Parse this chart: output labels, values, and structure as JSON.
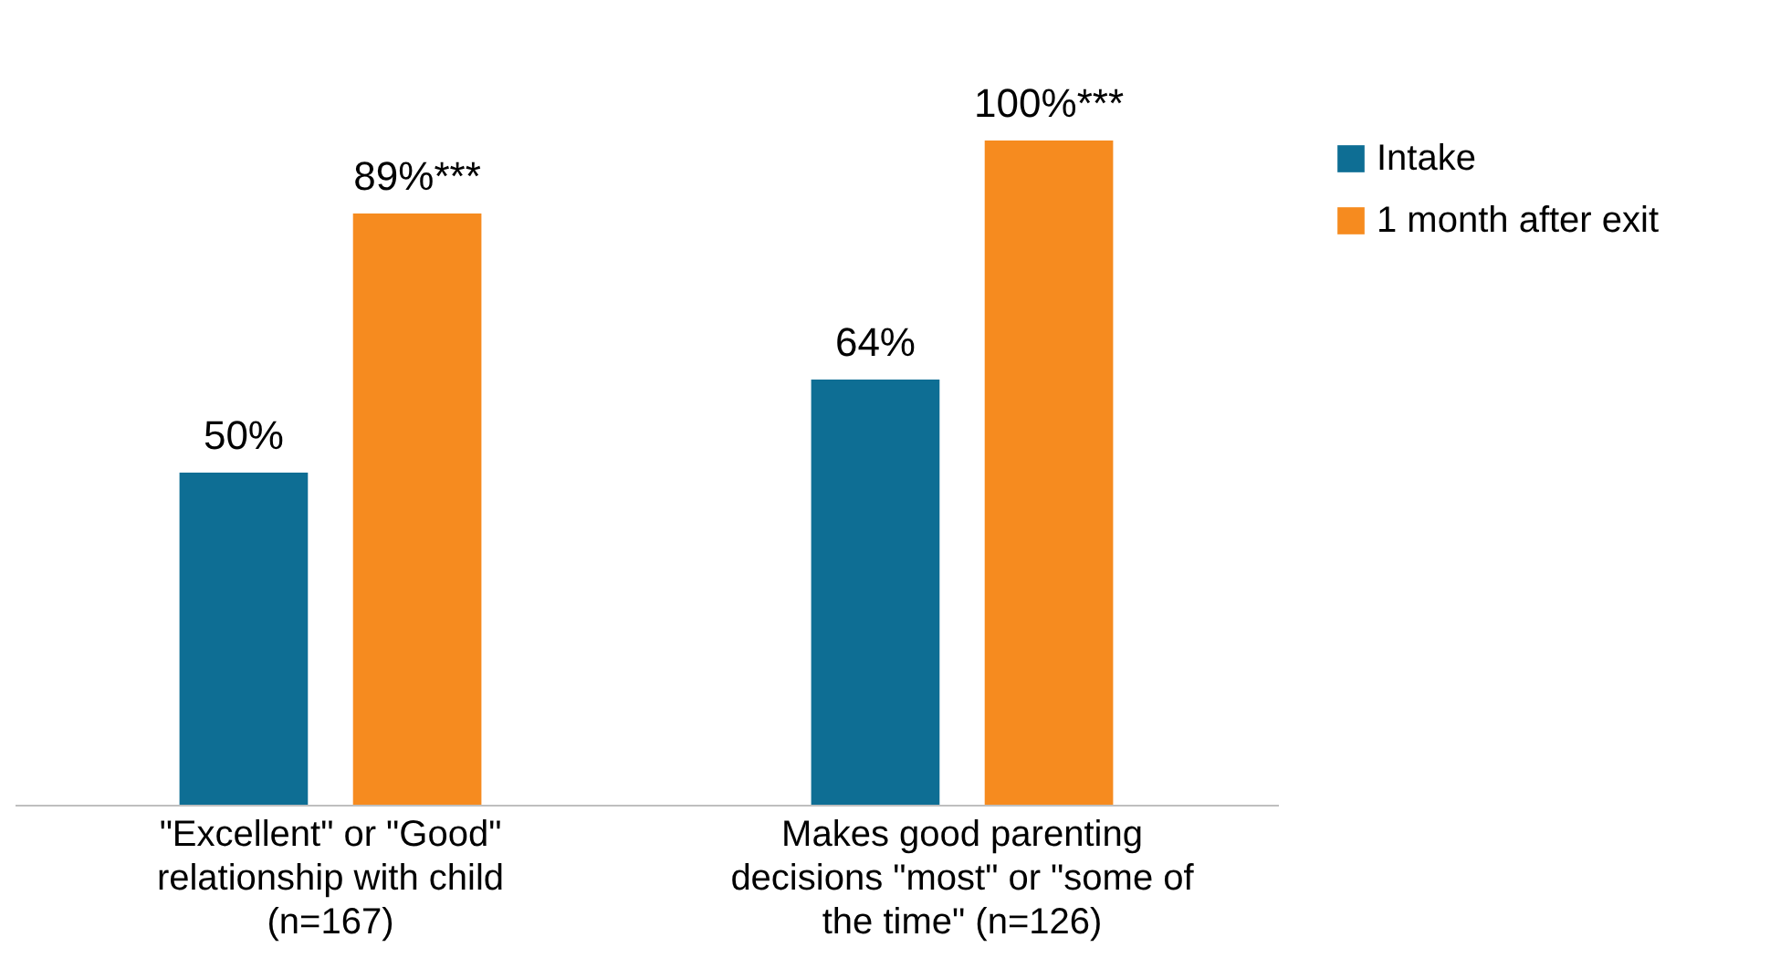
{
  "chart_data": {
    "type": "bar",
    "categories": [
      "\"Excellent\" or \"Good\" relationship with child (n=167)",
      "Makes good parenting decisions \"most\" or \"some of the time\" (n=126)"
    ],
    "series": [
      {
        "name": "Intake",
        "color": "#0e6e94",
        "values": [
          50,
          64
        ],
        "value_labels": [
          "50%",
          "64%"
        ]
      },
      {
        "name": "1 month after exit",
        "color": "#f68b1f",
        "values": [
          89,
          100
        ],
        "value_labels": [
          "89%***",
          "100%***"
        ]
      }
    ],
    "legend": "right",
    "grid": false
  }
}
